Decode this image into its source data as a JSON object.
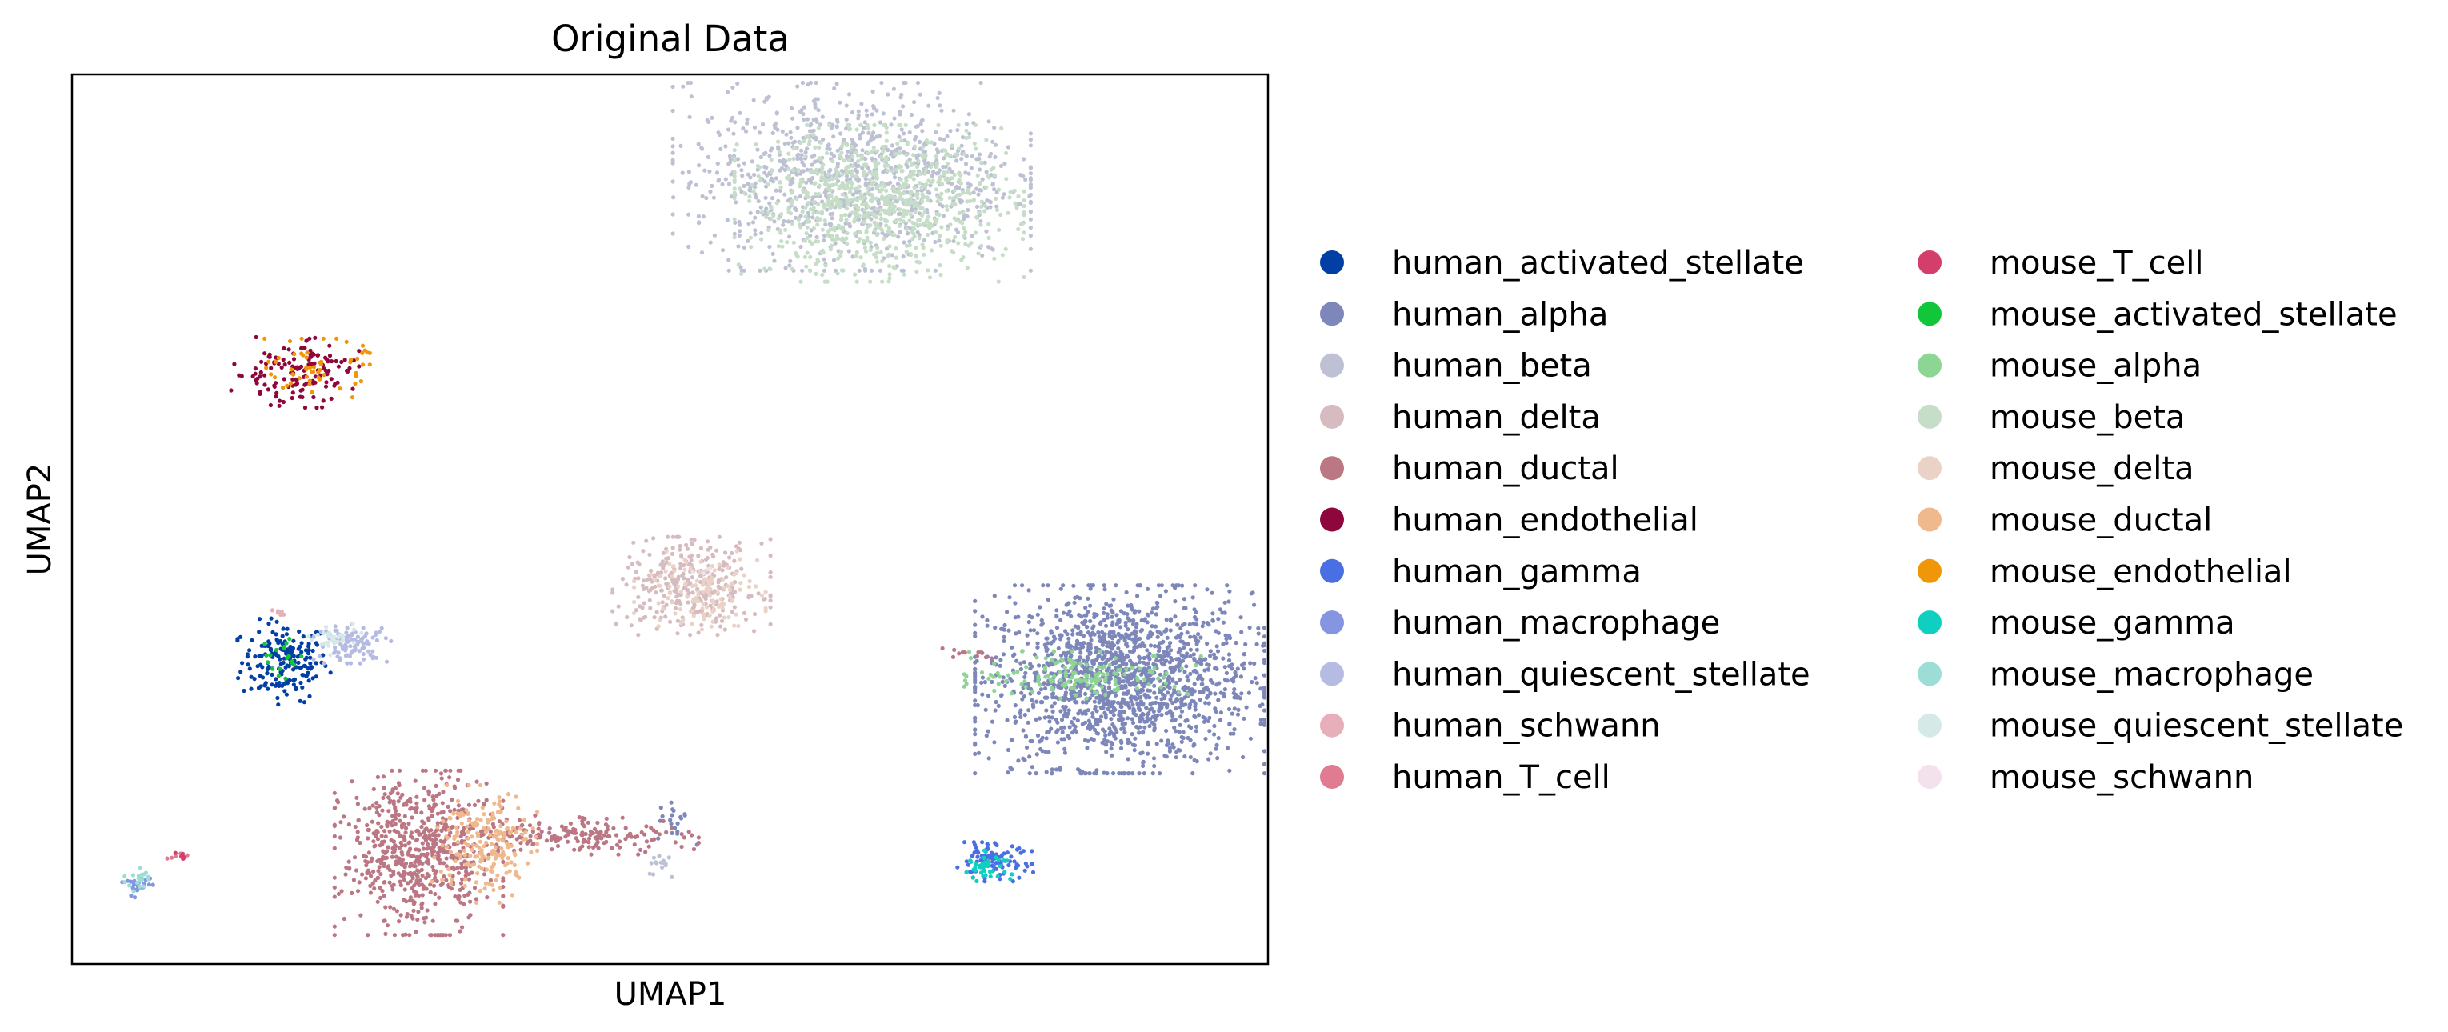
{
  "chart_data": {
    "type": "scatter",
    "title": "Original Data",
    "xlabel": "UMAP1",
    "ylabel": "UMAP2",
    "xlim": [
      0,
      100
    ],
    "ylim": [
      0,
      100
    ],
    "xticks": false,
    "yticks": false,
    "legend": {
      "placement": "right",
      "columns": 2
    },
    "series": [
      {
        "name": "human_activated_stellate",
        "color": "#023fa5",
        "clusters": [
          {
            "cx": 17.8,
            "cy": 34.0,
            "sx": 1.8,
            "sy": 2.2,
            "n": 180
          }
        ]
      },
      {
        "name": "human_alpha",
        "color": "#7d87b9",
        "clusters": [
          {
            "cx": 87.6,
            "cy": 32.0,
            "sx": 5.5,
            "sy": 4.8,
            "n": 1600
          },
          {
            "cx": 50.5,
            "cy": 16.0,
            "sx": 0.8,
            "sy": 1.2,
            "n": 20
          }
        ]
      },
      {
        "name": "human_beta",
        "color": "#bec1d4",
        "clusters": [
          {
            "cx": 65.2,
            "cy": 88.5,
            "sx": 6.8,
            "sy": 4.8,
            "n": 1000
          },
          {
            "cx": 49.5,
            "cy": 11.0,
            "sx": 0.6,
            "sy": 1.0,
            "n": 15
          }
        ]
      },
      {
        "name": "human_delta",
        "color": "#d6bcc0",
        "clusters": [
          {
            "cx": 51.8,
            "cy": 42.5,
            "sx": 3.0,
            "sy": 2.5,
            "n": 320
          }
        ]
      },
      {
        "name": "human_ductal",
        "color": "#bb7784",
        "clusters": [
          {
            "cx": 29.0,
            "cy": 12.5,
            "sx": 3.2,
            "sy": 4.2,
            "n": 650
          },
          {
            "cx": 42.5,
            "cy": 14.5,
            "sx": 4.5,
            "sy": 1.0,
            "n": 180
          },
          {
            "cx": 75.0,
            "cy": 35.0,
            "sx": 1.2,
            "sy": 0.3,
            "n": 12
          }
        ]
      },
      {
        "name": "human_endothelial",
        "color": "#8e063b",
        "clusters": [
          {
            "cx": 18.5,
            "cy": 66.5,
            "sx": 2.5,
            "sy": 1.8,
            "n": 140
          }
        ]
      },
      {
        "name": "human_gamma",
        "color": "#4a6fe3",
        "clusters": [
          {
            "cx": 77.0,
            "cy": 11.5,
            "sx": 1.6,
            "sy": 1.0,
            "n": 90
          }
        ]
      },
      {
        "name": "human_macrophage",
        "color": "#8595e1",
        "clusters": [
          {
            "cx": 5.5,
            "cy": 9.0,
            "sx": 0.6,
            "sy": 0.8,
            "n": 25
          }
        ]
      },
      {
        "name": "human_quiescent_stellate",
        "color": "#b5bbe3",
        "clusters": [
          {
            "cx": 23.5,
            "cy": 36.0,
            "sx": 1.5,
            "sy": 1.0,
            "n": 100
          }
        ]
      },
      {
        "name": "human_schwann",
        "color": "#e6afb9",
        "clusters": [
          {
            "cx": 17.5,
            "cy": 39.5,
            "sx": 0.4,
            "sy": 0.3,
            "n": 6
          }
        ]
      },
      {
        "name": "human_T_cell",
        "color": "#e07b91",
        "clusters": [
          {
            "cx": 9.0,
            "cy": 12.0,
            "sx": 0.6,
            "sy": 0.3,
            "n": 6
          }
        ]
      },
      {
        "name": "mouse_T_cell",
        "color": "#d33f6a",
        "clusters": [
          {
            "cx": 9.5,
            "cy": 12.2,
            "sx": 0.5,
            "sy": 0.3,
            "n": 6
          }
        ]
      },
      {
        "name": "mouse_activated_stellate",
        "color": "#11c638",
        "clusters": [
          {
            "cx": 17.5,
            "cy": 34.5,
            "sx": 1.0,
            "sy": 1.2,
            "n": 20
          }
        ]
      },
      {
        "name": "mouse_alpha",
        "color": "#8dd593",
        "clusters": [
          {
            "cx": 84.5,
            "cy": 32.5,
            "sx": 4.5,
            "sy": 1.2,
            "n": 150
          }
        ]
      },
      {
        "name": "mouse_beta",
        "color": "#c6dec7",
        "clusters": [
          {
            "cx": 67.5,
            "cy": 85.5,
            "sx": 5.5,
            "sy": 4.0,
            "n": 800
          }
        ]
      },
      {
        "name": "mouse_delta",
        "color": "#ead3c6",
        "clusters": [
          {
            "cx": 52.5,
            "cy": 42.0,
            "sx": 2.5,
            "sy": 2.0,
            "n": 120
          }
        ]
      },
      {
        "name": "mouse_ductal",
        "color": "#f0b98d",
        "clusters": [
          {
            "cx": 34.5,
            "cy": 13.5,
            "sx": 2.0,
            "sy": 3.0,
            "n": 200
          }
        ]
      },
      {
        "name": "mouse_endothelial",
        "color": "#ef9708",
        "clusters": [
          {
            "cx": 20.5,
            "cy": 67.0,
            "sx": 2.0,
            "sy": 1.5,
            "n": 60
          }
        ]
      },
      {
        "name": "mouse_gamma",
        "color": "#0fcfc0",
        "clusters": [
          {
            "cx": 76.5,
            "cy": 11.0,
            "sx": 1.0,
            "sy": 0.8,
            "n": 40
          }
        ]
      },
      {
        "name": "mouse_macrophage",
        "color": "#9cded6",
        "clusters": [
          {
            "cx": 5.5,
            "cy": 9.5,
            "sx": 0.5,
            "sy": 0.6,
            "n": 20
          }
        ]
      },
      {
        "name": "mouse_quiescent_stellate",
        "color": "#d5eae7",
        "clusters": [
          {
            "cx": 22.0,
            "cy": 36.5,
            "sx": 1.0,
            "sy": 0.8,
            "n": 30
          }
        ]
      },
      {
        "name": "mouse_schwann",
        "color": "#f3e1eb",
        "clusters": [
          {
            "cx": 53.0,
            "cy": 44.0,
            "sx": 0.5,
            "sy": 0.4,
            "n": 5
          }
        ]
      }
    ]
  }
}
